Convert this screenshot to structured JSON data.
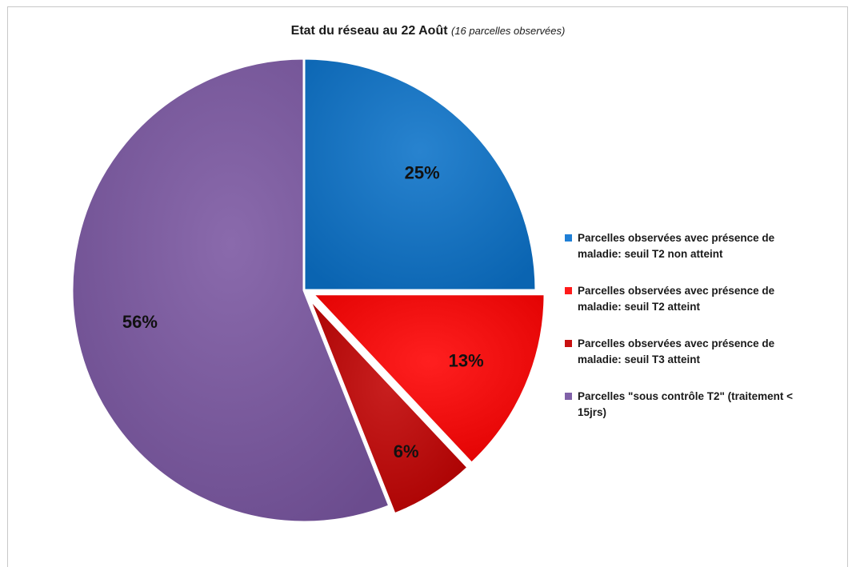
{
  "title": {
    "main": "Etat du réseau au 22 Août",
    "sub": "(16 parcelles observées)"
  },
  "chart_data": {
    "type": "pie",
    "title": "Etat du réseau au 22 Août (16 parcelles observées)",
    "categories": [
      "Parcelles  observées avec présence  de maladie: seuil T2 non atteint",
      "Parcelles  observées avec présence  de maladie: seuil T2  atteint",
      "Parcelles  observées avec présence  de maladie: seuil T3  atteint",
      "Parcelles \"sous contrôle T2\" (traitement < 15jrs)"
    ],
    "values": [
      25,
      13,
      6,
      56
    ],
    "labels": [
      "25%",
      "13%",
      "6%",
      "56%"
    ],
    "colors": [
      "#0b72c9",
      "#ff0000",
      "#c00000",
      "#7a56a1"
    ],
    "exploded": [
      false,
      true,
      true,
      false
    ],
    "legend_position": "right"
  },
  "legend": [
    {
      "line1": "Parcelles  observées avec présence  de",
      "line2": "maladie: seuil T2 non atteint",
      "color": "#1f7fd6"
    },
    {
      "line1": "Parcelles  observées avec présence  de",
      "line2": "maladie: seuil T2  atteint",
      "color": "#ff1a1a"
    },
    {
      "line1": "Parcelles  observées avec présence  de",
      "line2": "maladie: seuil T3  atteint",
      "color": "#c81010"
    },
    {
      "line1": "Parcelles \"sous contrôle T2\" (traitement <",
      "line2": "15jrs)",
      "color": "#8061a8"
    }
  ]
}
